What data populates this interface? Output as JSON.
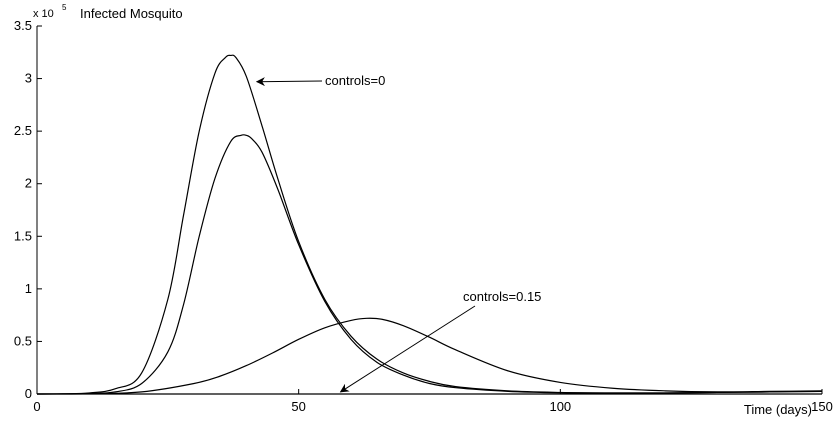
{
  "chart_data": {
    "type": "line",
    "ylabel": "Infected Mosquito",
    "xlabel": "Time (days)",
    "y_multiplier": {
      "base": "x 10",
      "exponent": "5"
    },
    "xlim": [
      0,
      150
    ],
    "ylim": [
      0,
      3.5
    ],
    "x_ticks": [
      "0",
      "50",
      "100",
      "150"
    ],
    "y_ticks": [
      "0",
      "0.5",
      "1",
      "1.5",
      "2",
      "2.5",
      "3",
      "3.5"
    ],
    "grid": false,
    "series": [
      {
        "x": [
          0,
          5,
          10,
          15,
          20,
          25,
          28,
          31,
          34,
          36,
          37,
          38,
          40,
          43,
          46,
          50,
          55,
          60,
          65,
          70,
          75,
          80,
          90,
          100,
          110,
          120,
          130,
          140,
          150
        ],
        "y": [
          0,
          0.002,
          0.01,
          0.05,
          0.2,
          0.9,
          1.7,
          2.5,
          3.05,
          3.2,
          3.22,
          3.2,
          3.02,
          2.55,
          2.05,
          1.45,
          0.9,
          0.55,
          0.33,
          0.2,
          0.12,
          0.07,
          0.03,
          0.015,
          0.01,
          0.01,
          0.015,
          0.02,
          0.025
        ]
      },
      {
        "x": [
          0,
          5,
          10,
          15,
          20,
          25,
          28,
          31,
          34,
          37,
          39,
          40,
          41,
          43,
          46,
          50,
          55,
          60,
          65,
          70,
          75,
          80,
          90,
          100,
          110,
          120,
          130,
          140,
          150
        ],
        "y": [
          0,
          0.001,
          0.005,
          0.02,
          0.1,
          0.4,
          0.85,
          1.5,
          2.05,
          2.4,
          2.46,
          2.46,
          2.43,
          2.3,
          1.95,
          1.42,
          0.88,
          0.52,
          0.3,
          0.18,
          0.1,
          0.06,
          0.025,
          0.012,
          0.01,
          0.01,
          0.015,
          0.02,
          0.025
        ]
      },
      {
        "x": [
          0,
          10,
          20,
          30,
          35,
          40,
          45,
          50,
          55,
          60,
          63,
          66,
          70,
          75,
          80,
          90,
          100,
          110,
          120,
          130,
          140,
          150
        ],
        "y": [
          0,
          0.002,
          0.02,
          0.1,
          0.17,
          0.27,
          0.39,
          0.52,
          0.63,
          0.7,
          0.72,
          0.71,
          0.65,
          0.54,
          0.42,
          0.22,
          0.11,
          0.055,
          0.03,
          0.02,
          0.025,
          0.03
        ]
      },
      {
        "x": [
          0,
          50,
          100,
          150
        ],
        "y": [
          0,
          0,
          0,
          0
        ]
      }
    ],
    "annotations": [
      {
        "text": "controls=0",
        "point_to": [
          42,
          2.97
        ]
      },
      {
        "text": "controls=0.15",
        "point_to": [
          58,
          0.02
        ]
      }
    ]
  }
}
